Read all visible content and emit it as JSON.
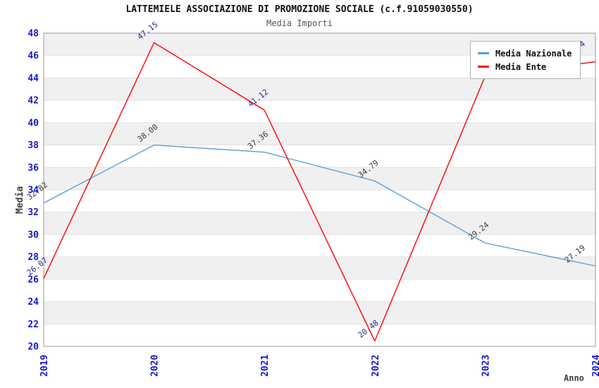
{
  "title": "LATTEMIELE ASSOCIAZIONE DI PROMOZIONE SOCIALE (c.f.91059030550)",
  "subtitle": "Media Importi",
  "axes": {
    "y_label": "Media",
    "x_label": "Anno",
    "y_ticks": [
      "48",
      "46",
      "44",
      "42",
      "40",
      "38",
      "36",
      "34",
      "32",
      "30",
      "28",
      "26",
      "24",
      "22",
      "20"
    ],
    "x_ticks": [
      "2019",
      "2020",
      "2021",
      "2022",
      "2023",
      "2024"
    ]
  },
  "legend": {
    "items": [
      {
        "label": "Media Nazionale",
        "color": "#5B9FD6"
      },
      {
        "label": "Media Ente",
        "color": "#FF0000"
      }
    ]
  },
  "chart_data": {
    "type": "line",
    "x": [
      2019,
      2020,
      2021,
      2022,
      2023,
      2024
    ],
    "series": [
      {
        "name": "Media Nazionale",
        "color": "#5B9FD6",
        "label_color": "#3A3A3A",
        "values": [
          32.82,
          38.0,
          37.36,
          34.79,
          29.24,
          27.19
        ],
        "point_labels": [
          "32.82",
          "38.00",
          "37.36",
          "34.79",
          "29.24",
          "27.19"
        ]
      },
      {
        "name": "Media Ente",
        "color": "#FF0000",
        "label_color": "#2B2B8F",
        "values": [
          26.07,
          47.15,
          41.12,
          20.48,
          44.15,
          45.44
        ],
        "point_labels": [
          "26.07",
          "47.15",
          "41.12",
          "20.48",
          "",
          "45.44"
        ],
        "note": "2023 point label is occluded by the legend box; 44.15 estimated from line position"
      }
    ],
    "title": "Media Importi",
    "xlabel": "Anno",
    "ylabel": "Media",
    "ylim": [
      20,
      48
    ],
    "y_tick_step": 2,
    "grid": "horizontal alternating bands + light gridlines",
    "legend_position": "top-right inside plot"
  },
  "colors": {
    "tick_label_blue": "#1515CE",
    "axis_title_gray": "#3F3F3F",
    "band_gray": "#F0F0F0",
    "gridline": "#E2E2E2",
    "plot_frame": "#999999"
  }
}
